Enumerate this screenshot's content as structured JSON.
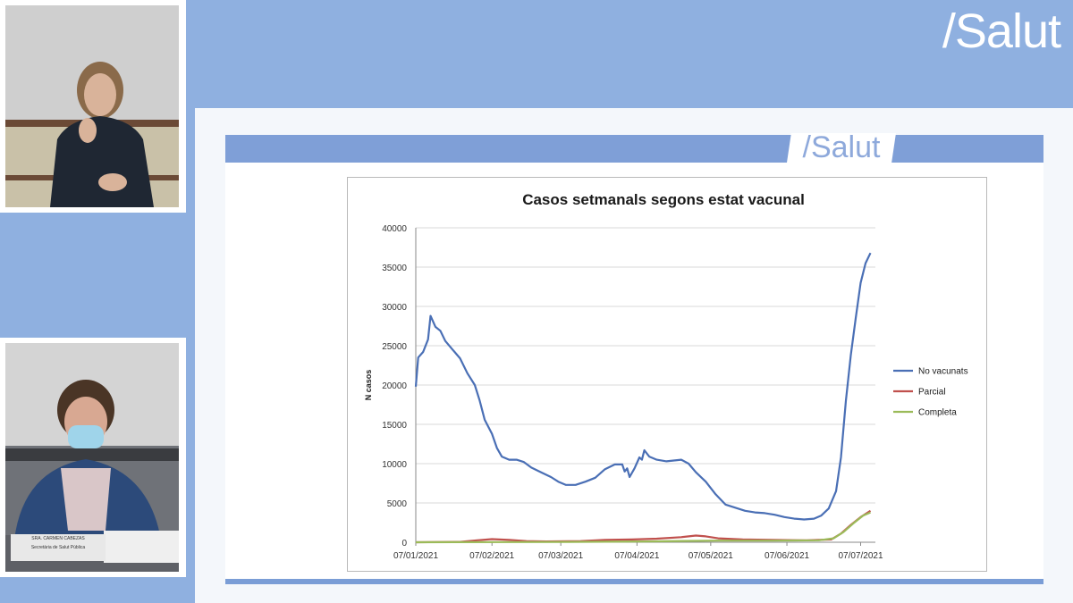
{
  "header": {
    "brand": "/Salut"
  },
  "video_feeds": {
    "nameplate_name": "SRA. CARMEN CABEZAS",
    "nameplate_role": "Secretària de Salut Pública"
  },
  "slide": {
    "brand": "/Salut"
  },
  "colors": {
    "background": "#8fb0e0",
    "no_vacunats": "#4a6fb5",
    "parcial": "#c0504d",
    "completa": "#9bbb59"
  },
  "chart_data": {
    "type": "line",
    "title": "Casos setmanals segons estat vacunal",
    "xlabel": "",
    "ylabel": "N casos",
    "ylim": [
      0,
      40000
    ],
    "yticks": [
      0,
      5000,
      10000,
      15000,
      20000,
      25000,
      30000,
      35000,
      40000
    ],
    "xlim": [
      "2021-01-07",
      "2021-07-13"
    ],
    "xticks": [
      "07/01/2021",
      "07/02/2021",
      "07/03/2021",
      "07/04/2021",
      "07/05/2021",
      "07/06/2021",
      "07/07/2021"
    ],
    "legend_position": "right",
    "series": [
      {
        "name": "No vacunats",
        "color": "#4a6fb5",
        "points": [
          [
            "2021-01-07",
            19800
          ],
          [
            "2021-01-08",
            23500
          ],
          [
            "2021-01-10",
            24200
          ],
          [
            "2021-01-12",
            25800
          ],
          [
            "2021-01-13",
            28800
          ],
          [
            "2021-01-15",
            27400
          ],
          [
            "2021-01-17",
            26900
          ],
          [
            "2021-01-19",
            25600
          ],
          [
            "2021-01-22",
            24500
          ],
          [
            "2021-01-25",
            23400
          ],
          [
            "2021-01-28",
            21500
          ],
          [
            "2021-01-31",
            20000
          ],
          [
            "2021-02-02",
            18000
          ],
          [
            "2021-02-04",
            15600
          ],
          [
            "2021-02-07",
            13800
          ],
          [
            "2021-02-09",
            12000
          ],
          [
            "2021-02-11",
            10900
          ],
          [
            "2021-02-14",
            10500
          ],
          [
            "2021-02-17",
            10500
          ],
          [
            "2021-02-20",
            10200
          ],
          [
            "2021-02-23",
            9500
          ],
          [
            "2021-02-27",
            8900
          ],
          [
            "2021-03-03",
            8300
          ],
          [
            "2021-03-06",
            7700
          ],
          [
            "2021-03-09",
            7300
          ],
          [
            "2021-03-13",
            7300
          ],
          [
            "2021-03-17",
            7700
          ],
          [
            "2021-03-21",
            8200
          ],
          [
            "2021-03-25",
            9300
          ],
          [
            "2021-03-29",
            9900
          ],
          [
            "2021-04-01",
            9900
          ],
          [
            "2021-04-02",
            9000
          ],
          [
            "2021-04-03",
            9400
          ],
          [
            "2021-04-04",
            8300
          ],
          [
            "2021-04-06",
            9400
          ],
          [
            "2021-04-08",
            10800
          ],
          [
            "2021-04-09",
            10500
          ],
          [
            "2021-04-10",
            11700
          ],
          [
            "2021-04-12",
            10900
          ],
          [
            "2021-04-15",
            10500
          ],
          [
            "2021-04-19",
            10300
          ],
          [
            "2021-04-22",
            10400
          ],
          [
            "2021-04-25",
            10500
          ],
          [
            "2021-04-28",
            10000
          ],
          [
            "2021-05-01",
            8900
          ],
          [
            "2021-05-05",
            7700
          ],
          [
            "2021-05-09",
            6100
          ],
          [
            "2021-05-13",
            4800
          ],
          [
            "2021-05-17",
            4400
          ],
          [
            "2021-05-21",
            4000
          ],
          [
            "2021-05-25",
            3800
          ],
          [
            "2021-05-29",
            3700
          ],
          [
            "2021-06-02",
            3500
          ],
          [
            "2021-06-06",
            3200
          ],
          [
            "2021-06-10",
            3000
          ],
          [
            "2021-06-14",
            2900
          ],
          [
            "2021-06-18",
            3000
          ],
          [
            "2021-06-21",
            3400
          ],
          [
            "2021-06-24",
            4300
          ],
          [
            "2021-06-27",
            6500
          ],
          [
            "2021-06-29",
            10800
          ],
          [
            "2021-07-01",
            18000
          ],
          [
            "2021-07-03",
            23800
          ],
          [
            "2021-07-05",
            28500
          ],
          [
            "2021-07-07",
            33000
          ],
          [
            "2021-07-09",
            35500
          ],
          [
            "2021-07-11",
            36800
          ]
        ]
      },
      {
        "name": "Parcial",
        "color": "#c0504d",
        "points": [
          [
            "2021-01-07",
            0
          ],
          [
            "2021-01-25",
            50
          ],
          [
            "2021-02-01",
            250
          ],
          [
            "2021-02-07",
            400
          ],
          [
            "2021-02-14",
            300
          ],
          [
            "2021-02-21",
            150
          ],
          [
            "2021-03-01",
            100
          ],
          [
            "2021-03-15",
            150
          ],
          [
            "2021-03-25",
            300
          ],
          [
            "2021-04-05",
            350
          ],
          [
            "2021-04-15",
            450
          ],
          [
            "2021-04-25",
            650
          ],
          [
            "2021-05-01",
            850
          ],
          [
            "2021-05-05",
            750
          ],
          [
            "2021-05-10",
            500
          ],
          [
            "2021-05-20",
            350
          ],
          [
            "2021-06-01",
            300
          ],
          [
            "2021-06-15",
            250
          ],
          [
            "2021-06-25",
            350
          ],
          [
            "2021-06-29",
            1100
          ],
          [
            "2021-07-03",
            2200
          ],
          [
            "2021-07-07",
            3200
          ],
          [
            "2021-07-11",
            4000
          ]
        ]
      },
      {
        "name": "Completa",
        "color": "#9bbb59",
        "points": [
          [
            "2021-01-07",
            0
          ],
          [
            "2021-02-10",
            20
          ],
          [
            "2021-03-10",
            50
          ],
          [
            "2021-04-10",
            100
          ],
          [
            "2021-05-10",
            200
          ],
          [
            "2021-06-01",
            200
          ],
          [
            "2021-06-20",
            250
          ],
          [
            "2021-06-26",
            500
          ],
          [
            "2021-06-30",
            1300
          ],
          [
            "2021-07-04",
            2400
          ],
          [
            "2021-07-08",
            3400
          ],
          [
            "2021-07-11",
            3800
          ]
        ]
      }
    ]
  }
}
